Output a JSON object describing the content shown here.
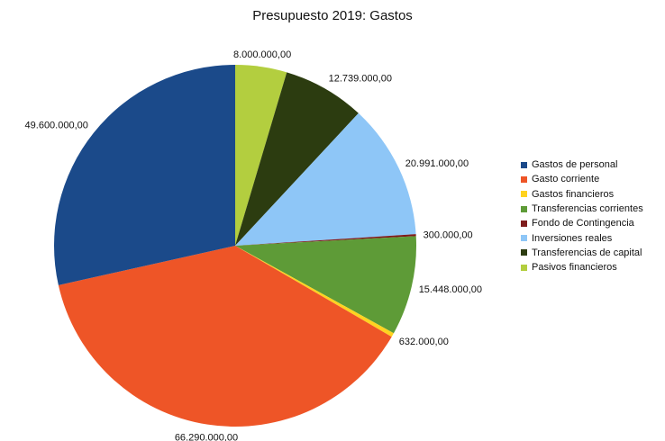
{
  "chart_data": {
    "type": "pie",
    "title": "Presupuesto 2019: Gastos",
    "legend_position": "right",
    "start": "12 o'clock",
    "direction": "clockwise",
    "order_clockwise_from_top": [
      "Pasivos financieros",
      "Transferencias de capital",
      "Inversiones reales",
      "Fondo de Contingencia",
      "Transferencias corrientes",
      "Gastos financieros",
      "Gasto corriente",
      "Gastos de personal"
    ],
    "slices": [
      {
        "name": "Gastos de personal",
        "value": 49600000,
        "label": "49.600.000,00",
        "color": "#1b4a8a"
      },
      {
        "name": "Gasto corriente",
        "value": 66290000,
        "label": "66.290.000,00",
        "color": "#ee5527"
      },
      {
        "name": "Gastos financieros",
        "value": 632000,
        "label": "632.000,00",
        "color": "#ffd320"
      },
      {
        "name": "Transferencias corrientes",
        "value": 15448000,
        "label": "15.448.000,00",
        "color": "#5e9b37"
      },
      {
        "name": "Fondo de Contingencia",
        "value": 300000,
        "label": "300.000,00",
        "color": "#7e1c1c"
      },
      {
        "name": "Inversiones reales",
        "value": 20991000,
        "label": "20.991.000,00",
        "color": "#8ec6f7"
      },
      {
        "name": "Transferencias de capital",
        "value": 12739000,
        "label": "12.739.000,00",
        "color": "#2c3c10"
      },
      {
        "name": "Pasivos financieros",
        "value": 8000000,
        "label": "8.000.000,00",
        "color": "#b3ce3f"
      }
    ]
  }
}
